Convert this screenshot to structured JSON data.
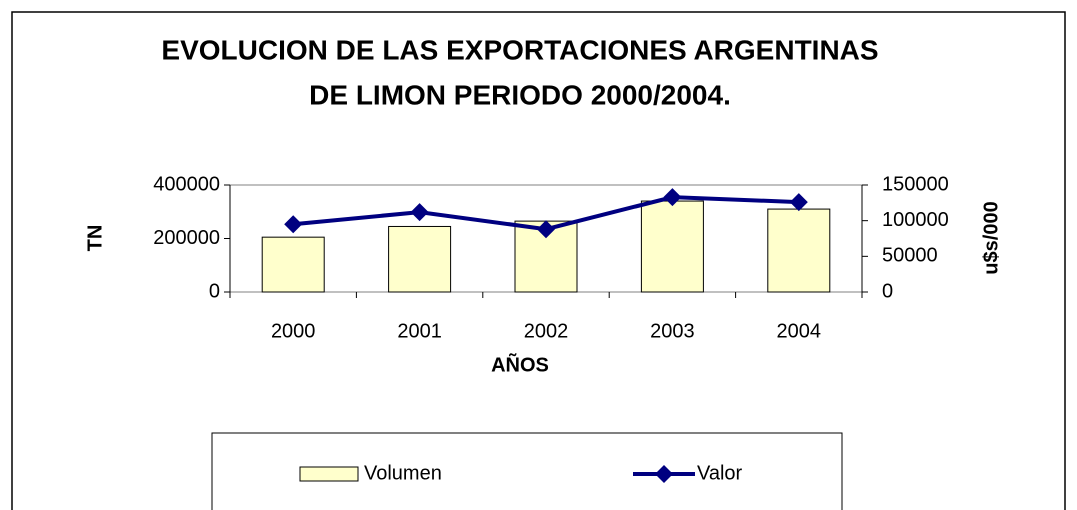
{
  "chart_data": {
    "type": "bar",
    "title": "EVOLUCION DE LAS EXPORTACIONES ARGENTINAS",
    "subtitle": "DE LIMON PERIODO 2000/2004.",
    "x_label": "AÑOS",
    "y_label": "TN",
    "y2_label": "u$s/000",
    "categories": [
      "2000",
      "2001",
      "2002",
      "2003",
      "2004"
    ],
    "series": [
      {
        "name": "Volumen",
        "type": "bar",
        "color": "#ffffcc",
        "values": [
          205000,
          245000,
          265000,
          340000,
          310000
        ]
      },
      {
        "name": "Valor",
        "type": "line",
        "axis": "y2",
        "color": "#000080",
        "values": [
          95000,
          112000,
          88000,
          133000,
          126000
        ]
      }
    ],
    "ylim": [
      0,
      400000
    ],
    "yticks": [
      0,
      200000,
      400000
    ],
    "y2lim": [
      0,
      150000
    ],
    "y2ticks": [
      0,
      50000,
      100000,
      150000
    ],
    "legend": "bottom"
  }
}
